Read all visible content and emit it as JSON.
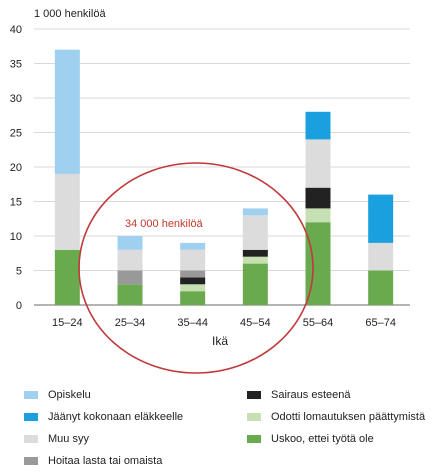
{
  "chart_data": {
    "type": "bar",
    "stacked": true,
    "unit_label": "1 000 henkilöä",
    "xlabel": "Ikä",
    "ylabel": "",
    "ylim": [
      0,
      40
    ],
    "yticks": [
      0,
      5,
      10,
      15,
      20,
      25,
      30,
      35,
      40
    ],
    "categories": [
      "15–24",
      "25–34",
      "35–44",
      "45–54",
      "55–64",
      "65–74"
    ],
    "series": [
      {
        "name": "Uskoo, ettei työtä ole",
        "color": "#6aaa4f",
        "values": [
          8,
          3,
          2,
          6,
          12,
          5
        ]
      },
      {
        "name": "Odotti lomautuksen päättymistä",
        "color": "#c6e0b4",
        "values": [
          0,
          0,
          1,
          1,
          2,
          0
        ]
      },
      {
        "name": "Sairaus esteenä",
        "color": "#222222",
        "values": [
          0,
          0,
          1,
          1,
          3,
          0
        ]
      },
      {
        "name": "Hoitaa lasta tai omaista",
        "color": "#999999",
        "values": [
          0,
          2,
          1,
          0,
          0,
          0
        ]
      },
      {
        "name": "Muu syy",
        "color": "#dcdcdc",
        "values": [
          11,
          3,
          3,
          5,
          7,
          4
        ]
      },
      {
        "name": "Jäänyt kokonaan eläkkeelle",
        "color": "#1aa0de",
        "values": [
          0,
          0,
          0,
          0,
          4,
          7
        ]
      },
      {
        "name": "Opiskelu",
        "color": "#9fd0f0",
        "values": [
          18,
          2,
          1,
          1,
          0,
          0
        ]
      }
    ],
    "annotation": {
      "text": "34 000 henkilöä",
      "color": "#c0392b"
    },
    "grid": "horizontal",
    "legend_position": "bottom"
  },
  "legend": {
    "left": [
      {
        "label": "Opiskelu",
        "color": "#9fd0f0"
      },
      {
        "label": "Jäänyt kokonaan eläkkeelle",
        "color": "#1aa0de"
      },
      {
        "label": "Muu syy",
        "color": "#dcdcdc"
      },
      {
        "label": "Hoitaa lasta tai omaista",
        "color": "#999999"
      }
    ],
    "right": [
      {
        "label": "Sairaus esteenä",
        "color": "#222222"
      },
      {
        "label": "Odotti lomautuksen päättymistä",
        "color": "#c6e0b4"
      },
      {
        "label": "Uskoo, ettei työtä ole",
        "color": "#6aaa4f"
      }
    ]
  }
}
